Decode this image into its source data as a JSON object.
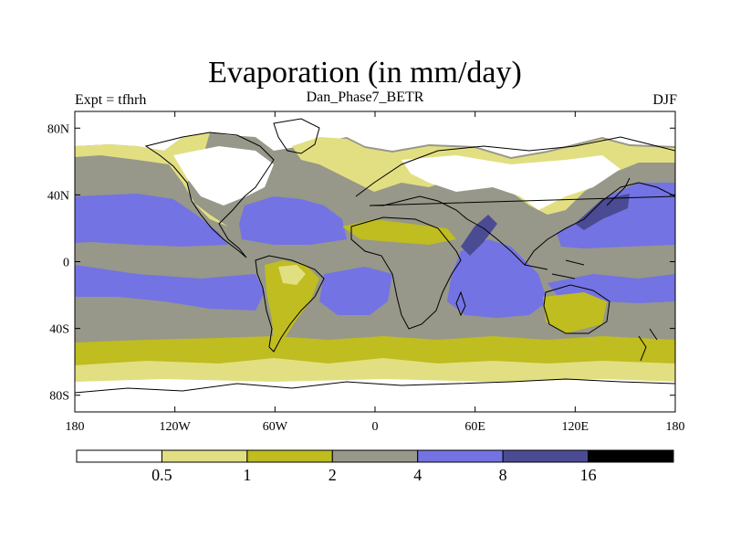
{
  "title": "Evaporation (in mm/day)",
  "left_label": "Expt = tfhrh",
  "center_label": "Dan_Phase7_BETR",
  "right_label": "DJF",
  "map": {
    "projection": "cylindrical equidistant",
    "lon_range": [
      -180,
      180
    ],
    "lat_range": [
      -90,
      90
    ],
    "x_ticks": [
      {
        "value": -180,
        "label": "180"
      },
      {
        "value": -120,
        "label": "120W"
      },
      {
        "value": -60,
        "label": "60W"
      },
      {
        "value": 0,
        "label": "0"
      },
      {
        "value": 60,
        "label": "60E"
      },
      {
        "value": 120,
        "label": "120E"
      },
      {
        "value": 180,
        "label": "180"
      }
    ],
    "y_ticks": [
      {
        "value": 80,
        "label": "80N"
      },
      {
        "value": 40,
        "label": "40N"
      },
      {
        "value": 0,
        "label": "0"
      },
      {
        "value": -40,
        "label": "40S"
      },
      {
        "value": -80,
        "label": "80S"
      }
    ]
  },
  "colors": {
    "c0": "#ffffff",
    "c1": "#e2df82",
    "c2": "#bfbd1f",
    "c3": "#97978a",
    "c4": "#7373e3",
    "c5": "#4b4b94",
    "c6": "#000000",
    "coast": "#000000"
  },
  "colorbar": {
    "levels": [
      "0.5",
      "1",
      "2",
      "4",
      "8",
      "16"
    ],
    "bins": [
      "c0",
      "c1",
      "c2",
      "c3",
      "c4",
      "c5",
      "c6"
    ]
  }
}
